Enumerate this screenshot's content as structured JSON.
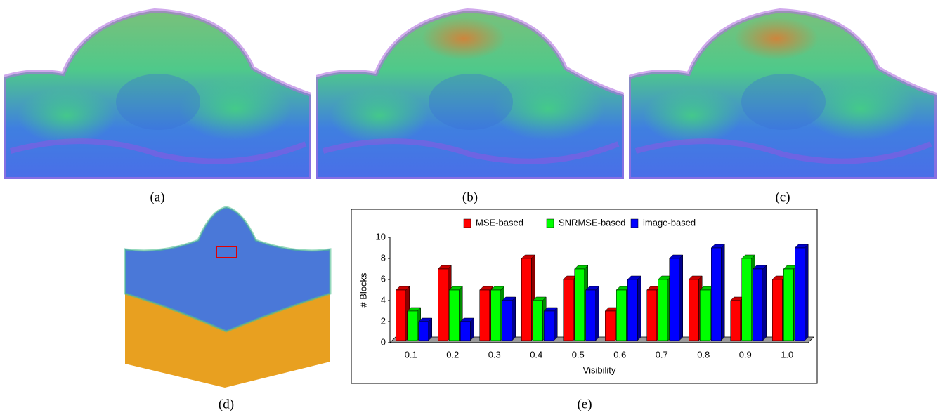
{
  "captions": [
    "(a)",
    "(b)",
    "(c)",
    "(d)",
    "(e)"
  ],
  "chart_data": {
    "type": "bar3d",
    "categories": [
      "0.1",
      "0.2",
      "0.3",
      "0.4",
      "0.5",
      "0.6",
      "0.7",
      "0.8",
      "0.9",
      "1.0"
    ],
    "series": [
      {
        "name": "MSE-based",
        "color": "#ff0000",
        "values": [
          5,
          7,
          5,
          8,
          6,
          3,
          5,
          6,
          4,
          6
        ]
      },
      {
        "name": "SNRMSE-based",
        "color": "#00ff00",
        "values": [
          3,
          5,
          5,
          4,
          7,
          5,
          6,
          5,
          8,
          7
        ]
      },
      {
        "name": "image-based",
        "color": "#0000ff",
        "values": [
          2,
          2,
          4,
          3,
          5,
          6,
          8,
          9,
          7,
          9
        ]
      }
    ],
    "x_label": "Visibility",
    "y_label": "# Blocks",
    "ylim": [
      0,
      10
    ],
    "yticks": [
      0,
      2,
      4,
      6,
      8,
      10
    ],
    "grid": false,
    "legend": "top"
  }
}
